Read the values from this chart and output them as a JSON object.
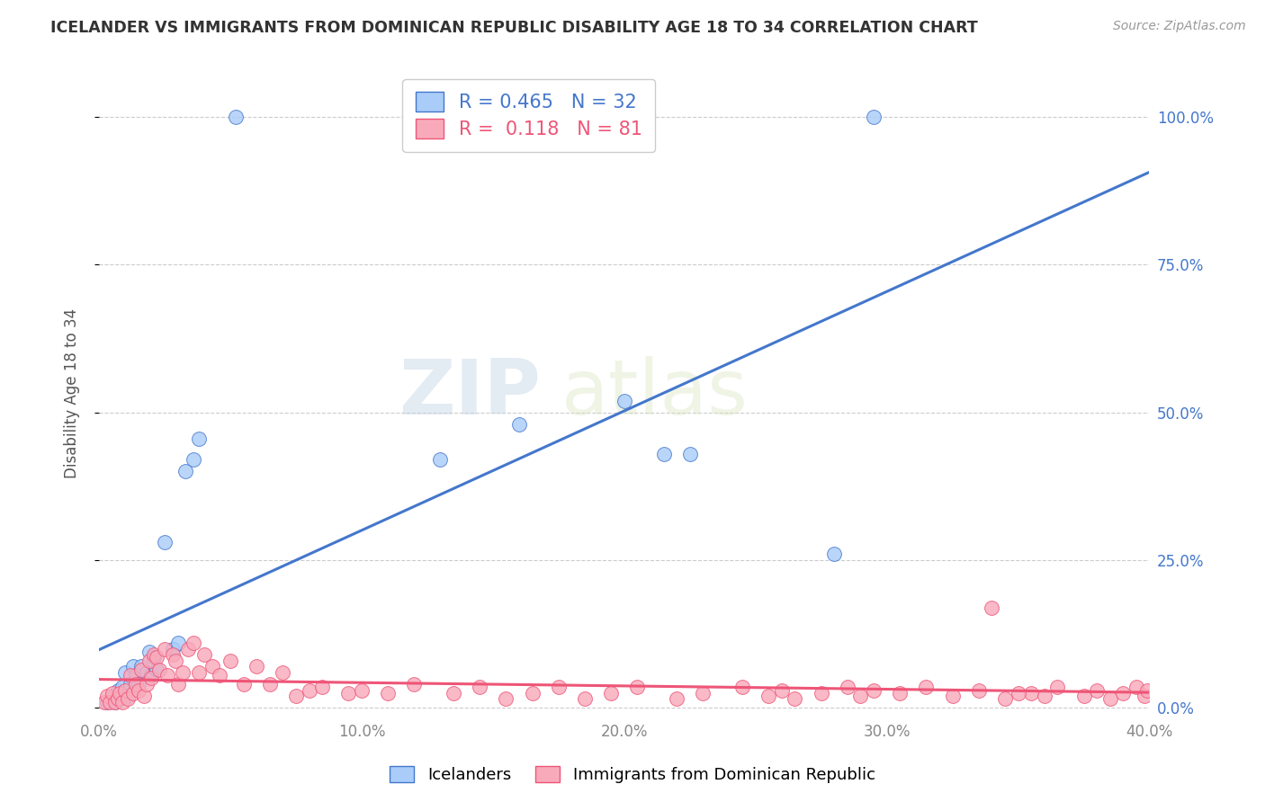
{
  "title": "ICELANDER VS IMMIGRANTS FROM DOMINICAN REPUBLIC DISABILITY AGE 18 TO 34 CORRELATION CHART",
  "source": "Source: ZipAtlas.com",
  "ylabel": "Disability Age 18 to 34",
  "xmin": 0.0,
  "xmax": 0.4,
  "ymin": -0.015,
  "ymax": 1.08,
  "x_ticks": [
    0.0,
    0.1,
    0.2,
    0.3,
    0.4
  ],
  "x_tick_labels": [
    "0.0%",
    "10.0%",
    "20.0%",
    "30.0%",
    "40.0%"
  ],
  "y_ticks": [
    0.0,
    0.25,
    0.5,
    0.75,
    1.0
  ],
  "y_tick_labels": [
    "0.0%",
    "25.0%",
    "50.0%",
    "75.0%",
    "100.0%"
  ],
  "icelanders_color": "#aaccf8",
  "immigrants_color": "#f8aabb",
  "line_icelanders_color": "#4477cc",
  "line_immigrants_color": "#ee5577",
  "legend_R1": "0.465",
  "legend_N1": "32",
  "legend_R2": "0.118",
  "legend_N2": "81",
  "icelanders_x": [
    0.003,
    0.005,
    0.006,
    0.007,
    0.008,
    0.009,
    0.01,
    0.011,
    0.012,
    0.013,
    0.014,
    0.015,
    0.016,
    0.018,
    0.019,
    0.02,
    0.021,
    0.022,
    0.025,
    0.028,
    0.03,
    0.033,
    0.036,
    0.038,
    0.052,
    0.13,
    0.16,
    0.2,
    0.215,
    0.225,
    0.28,
    0.295
  ],
  "icelanders_y": [
    0.01,
    0.02,
    0.01,
    0.03,
    0.015,
    0.035,
    0.06,
    0.02,
    0.04,
    0.07,
    0.055,
    0.04,
    0.07,
    0.06,
    0.095,
    0.055,
    0.085,
    0.065,
    0.28,
    0.1,
    0.11,
    0.4,
    0.42,
    0.455,
    1.0,
    0.42,
    0.48,
    0.52,
    0.43,
    0.43,
    0.26,
    1.0
  ],
  "immigrants_x": [
    0.002,
    0.003,
    0.004,
    0.005,
    0.006,
    0.007,
    0.008,
    0.009,
    0.01,
    0.011,
    0.012,
    0.013,
    0.014,
    0.015,
    0.016,
    0.017,
    0.018,
    0.019,
    0.02,
    0.021,
    0.022,
    0.023,
    0.025,
    0.026,
    0.028,
    0.029,
    0.03,
    0.032,
    0.034,
    0.036,
    0.038,
    0.04,
    0.043,
    0.046,
    0.05,
    0.055,
    0.06,
    0.065,
    0.07,
    0.075,
    0.08,
    0.085,
    0.095,
    0.1,
    0.11,
    0.12,
    0.135,
    0.145,
    0.155,
    0.165,
    0.175,
    0.185,
    0.195,
    0.205,
    0.22,
    0.23,
    0.245,
    0.255,
    0.26,
    0.265,
    0.275,
    0.285,
    0.29,
    0.295,
    0.305,
    0.315,
    0.325,
    0.335,
    0.345,
    0.355,
    0.365,
    0.375,
    0.38,
    0.385,
    0.39,
    0.395,
    0.398,
    0.399,
    0.34,
    0.35,
    0.36
  ],
  "immigrants_y": [
    0.01,
    0.02,
    0.01,
    0.025,
    0.01,
    0.015,
    0.025,
    0.01,
    0.03,
    0.015,
    0.055,
    0.025,
    0.04,
    0.03,
    0.065,
    0.02,
    0.04,
    0.08,
    0.05,
    0.09,
    0.085,
    0.065,
    0.1,
    0.055,
    0.09,
    0.08,
    0.04,
    0.06,
    0.1,
    0.11,
    0.06,
    0.09,
    0.07,
    0.055,
    0.08,
    0.04,
    0.07,
    0.04,
    0.06,
    0.02,
    0.03,
    0.035,
    0.025,
    0.03,
    0.025,
    0.04,
    0.025,
    0.035,
    0.015,
    0.025,
    0.035,
    0.015,
    0.025,
    0.035,
    0.015,
    0.025,
    0.035,
    0.02,
    0.03,
    0.015,
    0.025,
    0.035,
    0.02,
    0.03,
    0.025,
    0.035,
    0.02,
    0.03,
    0.015,
    0.025,
    0.035,
    0.02,
    0.03,
    0.015,
    0.025,
    0.035,
    0.02,
    0.03,
    0.17,
    0.025,
    0.02
  ],
  "watermark_zip": "ZIP",
  "watermark_atlas": "atlas",
  "background_color": "#ffffff",
  "grid_color": "#cccccc",
  "title_color": "#333333",
  "source_color": "#999999",
  "ylabel_color": "#555555",
  "tick_color_x": "#888888",
  "tick_color_y_right": "#4477cc"
}
